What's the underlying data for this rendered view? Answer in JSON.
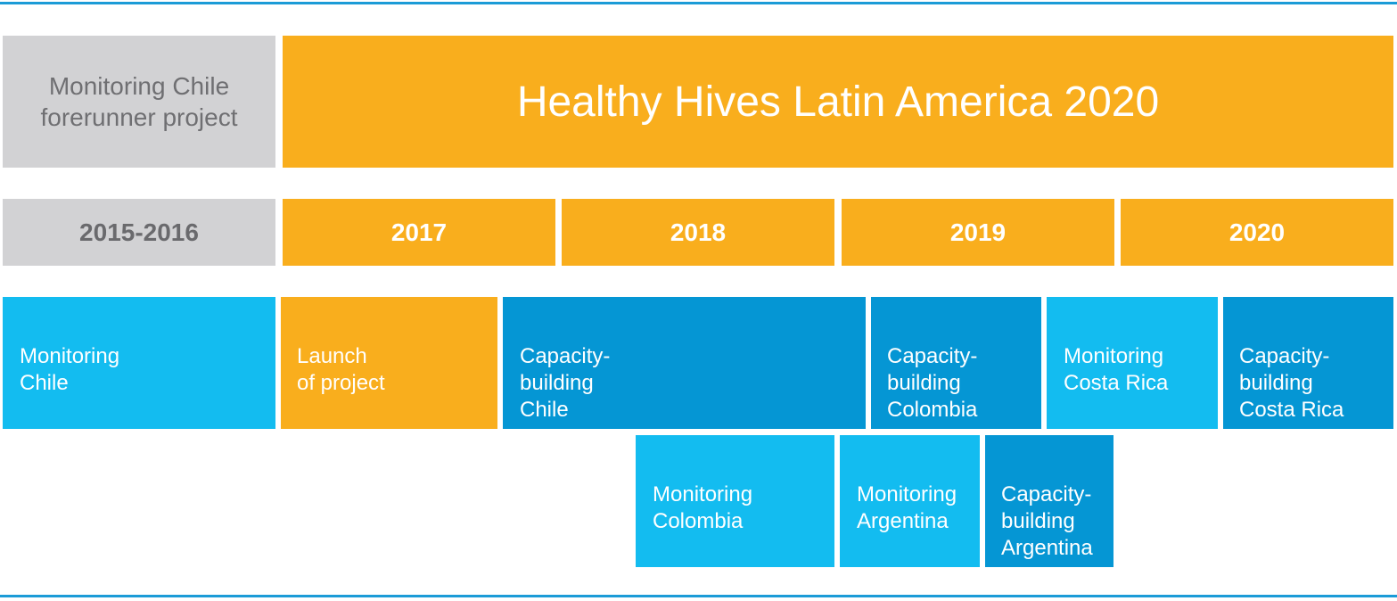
{
  "header": {
    "forerunner_label": "Monitoring Chile\nforerunner project",
    "program_title": "Healthy Hives Latin America 2020"
  },
  "years": {
    "y2015_2016": "2015-2016",
    "y2017": "2017",
    "y2018": "2018",
    "y2019": "2019",
    "y2020": "2020"
  },
  "activities": {
    "monitoring_chile": "Monitoring\nChile",
    "launch_project": "Launch\nof project",
    "capacity_chile": "Capacity-\nbuilding\nChile",
    "capacity_colombia": "Capacity-\nbuilding\nColombia",
    "monitoring_costa_rica": "Monitoring\nCosta Rica",
    "capacity_costa_rica": "Capacity-\nbuilding\nCosta Rica",
    "monitoring_colombia": "Monitoring\nColombia",
    "monitoring_argentina": "Monitoring\nArgentina",
    "capacity_argentina": "Capacity-\nbuilding\nArgentina"
  },
  "colors": {
    "rule": "#1b9bd7",
    "grey": "#d2d2d4",
    "orange": "#f9ae1d",
    "monitoring_blue": "#13bcf0",
    "capacity_blue": "#0596d4"
  }
}
